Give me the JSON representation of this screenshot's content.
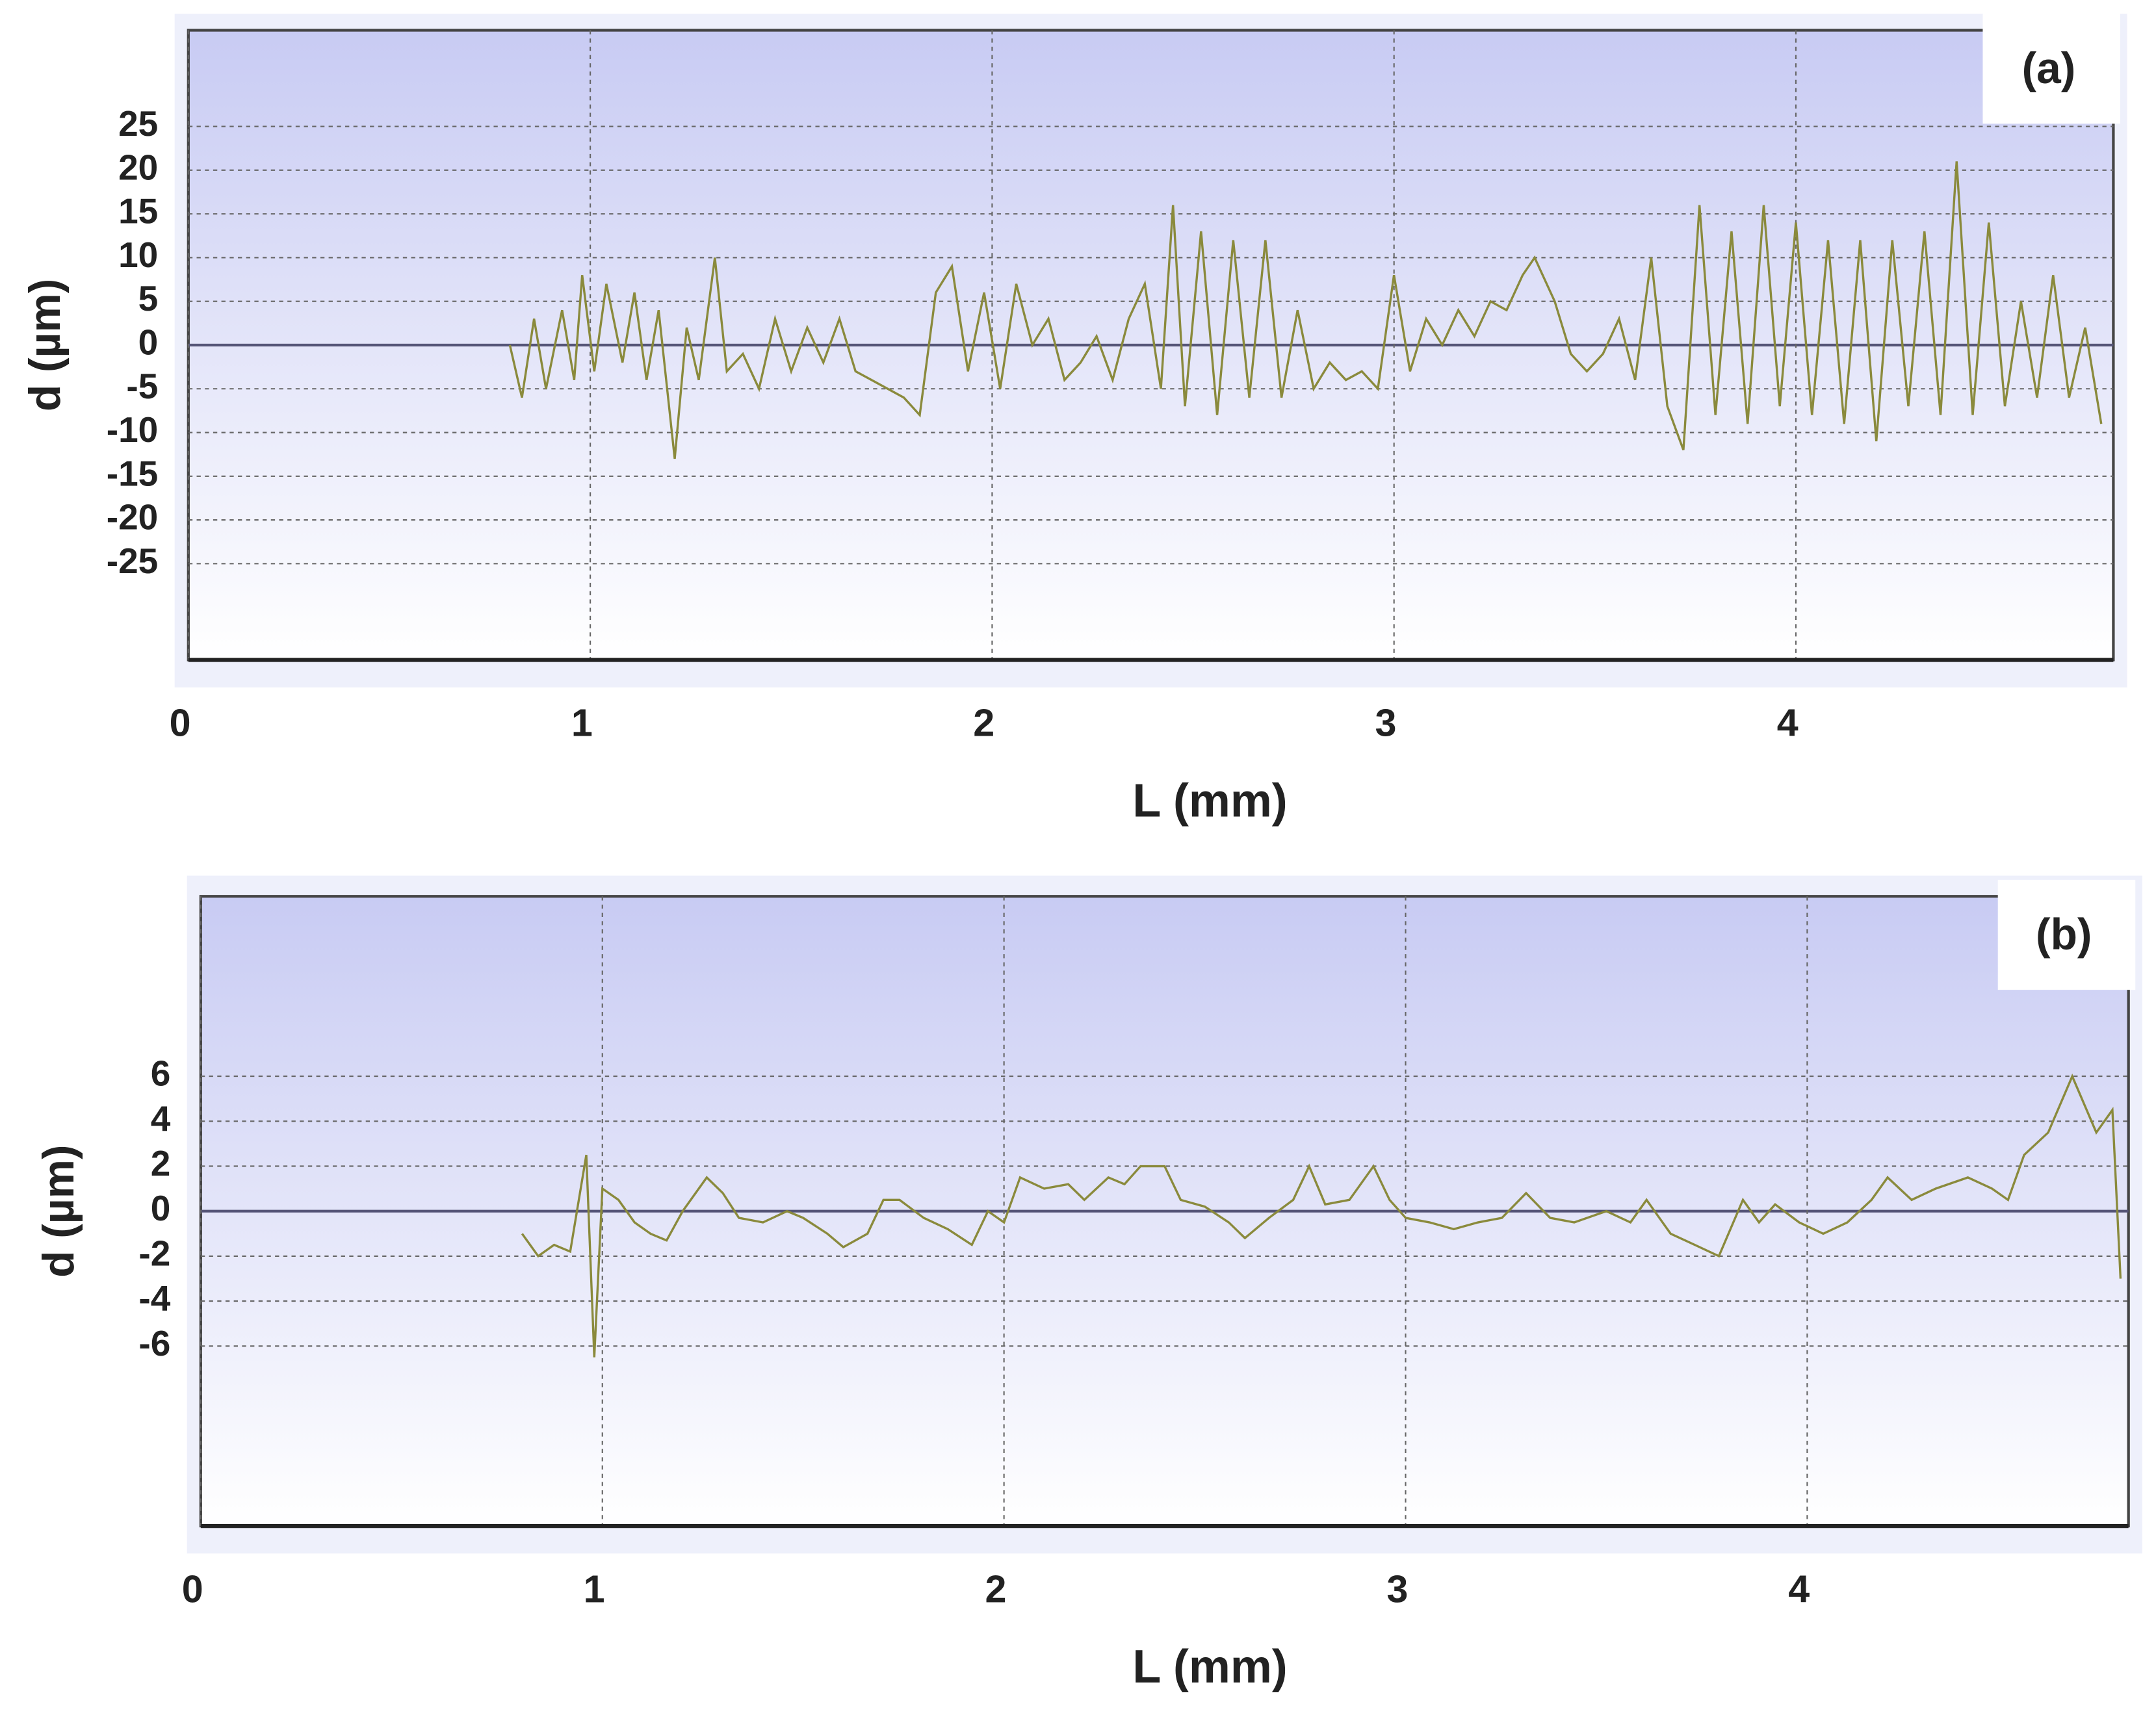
{
  "chart_data": [
    {
      "type": "line",
      "title": "(a)",
      "x_label": "L (mm)",
      "y_label": "d (µm)",
      "color": "#8a8a3c",
      "grid": true,
      "xlim": [
        0,
        4.79
      ],
      "xticks": [
        0,
        1,
        2,
        3,
        4
      ],
      "ylim": [
        -36,
        36
      ],
      "yticks": [
        -25,
        -20,
        -15,
        -10,
        -5,
        0,
        5,
        10,
        15,
        20,
        25
      ],
      "x": [
        0.8,
        0.83,
        0.86,
        0.89,
        0.93,
        0.96,
        0.98,
        1.01,
        1.04,
        1.08,
        1.11,
        1.14,
        1.17,
        1.21,
        1.24,
        1.27,
        1.31,
        1.34,
        1.38,
        1.42,
        1.46,
        1.5,
        1.54,
        1.58,
        1.62,
        1.66,
        1.7,
        1.74,
        1.78,
        1.82,
        1.86,
        1.9,
        1.94,
        1.98,
        2.02,
        2.06,
        2.1,
        2.14,
        2.18,
        2.22,
        2.26,
        2.3,
        2.34,
        2.38,
        2.42,
        2.45,
        2.48,
        2.52,
        2.56,
        2.6,
        2.64,
        2.68,
        2.72,
        2.76,
        2.8,
        2.84,
        2.88,
        2.92,
        2.96,
        3.0,
        3.04,
        3.08,
        3.12,
        3.16,
        3.2,
        3.24,
        3.28,
        3.32,
        3.35,
        3.4,
        3.44,
        3.48,
        3.52,
        3.56,
        3.6,
        3.64,
        3.68,
        3.72,
        3.76,
        3.8,
        3.84,
        3.88,
        3.92,
        3.96,
        4.0,
        4.04,
        4.08,
        4.12,
        4.16,
        4.2,
        4.24,
        4.28,
        4.32,
        4.36,
        4.4,
        4.44,
        4.48,
        4.52,
        4.56,
        4.6,
        4.64,
        4.68,
        4.72,
        4.76
      ],
      "values": [
        0,
        -6,
        3,
        -5,
        4,
        -4,
        8,
        -3,
        7,
        -2,
        6,
        -4,
        4,
        -13,
        2,
        -4,
        10,
        -3,
        -1,
        -5,
        3,
        -3,
        2,
        -2,
        3,
        -3,
        -4,
        -5,
        -6,
        -8,
        6,
        9,
        -3,
        6,
        -5,
        7,
        0,
        3,
        -4,
        -2,
        1,
        -4,
        3,
        7,
        -5,
        16,
        -7,
        13,
        -8,
        12,
        -6,
        12,
        -6,
        4,
        -5,
        -2,
        -4,
        -3,
        -5,
        8,
        -3,
        3,
        0,
        4,
        1,
        5,
        4,
        8,
        10,
        5,
        -1,
        -3,
        -1,
        3,
        -4,
        10,
        -7,
        -12,
        16,
        -8,
        13,
        -9,
        16,
        -7,
        14,
        -8,
        12,
        -9,
        12,
        -11,
        12,
        -7,
        13,
        -8,
        21,
        -8,
        14,
        -7,
        5,
        -6,
        8,
        -6,
        2,
        -9
      ]
    },
    {
      "type": "line",
      "title": "(b)",
      "x_label": "L (mm)",
      "y_label": "d (µm)",
      "color": "#8a8a3c",
      "grid": true,
      "xlim": [
        0,
        4.8
      ],
      "xticks": [
        0,
        1,
        2,
        3,
        4
      ],
      "ylim": [
        -14,
        14
      ],
      "yticks": [
        -6,
        -4,
        -2,
        0,
        2,
        4,
        6
      ],
      "x": [
        0.8,
        0.84,
        0.88,
        0.92,
        0.96,
        0.98,
        1.0,
        1.04,
        1.08,
        1.12,
        1.16,
        1.2,
        1.26,
        1.3,
        1.34,
        1.4,
        1.46,
        1.5,
        1.56,
        1.6,
        1.66,
        1.7,
        1.74,
        1.8,
        1.86,
        1.92,
        1.96,
        2.0,
        2.04,
        2.1,
        2.16,
        2.2,
        2.26,
        2.3,
        2.34,
        2.4,
        2.44,
        2.5,
        2.56,
        2.6,
        2.66,
        2.72,
        2.76,
        2.8,
        2.86,
        2.92,
        2.96,
        3.0,
        3.06,
        3.12,
        3.18,
        3.24,
        3.3,
        3.36,
        3.42,
        3.5,
        3.56,
        3.6,
        3.66,
        3.72,
        3.78,
        3.84,
        3.88,
        3.92,
        3.98,
        4.04,
        4.1,
        4.16,
        4.2,
        4.26,
        4.32,
        4.4,
        4.46,
        4.5,
        4.54,
        4.6,
        4.66,
        4.72,
        4.76,
        4.78
      ],
      "values": [
        -1,
        -2,
        -1.5,
        -1.8,
        2.5,
        -6.5,
        1,
        0.5,
        -0.5,
        -1,
        -1.3,
        0,
        1.5,
        0.8,
        -0.3,
        -0.5,
        0,
        -0.3,
        -1,
        -1.6,
        -1,
        0.5,
        0.5,
        -0.3,
        -0.8,
        -1.5,
        0,
        -0.5,
        1.5,
        1,
        1.2,
        0.5,
        1.5,
        1.2,
        2,
        2,
        0.5,
        0.2,
        -0.5,
        -1.2,
        -0.3,
        0.5,
        2,
        0.3,
        0.5,
        2,
        0.5,
        -0.3,
        -0.5,
        -0.8,
        -0.5,
        -0.3,
        0.8,
        -0.3,
        -0.5,
        0,
        -0.5,
        0.5,
        -1,
        -1.5,
        -2,
        0.5,
        -0.5,
        0.3,
        -0.5,
        -1,
        -0.5,
        0.5,
        1.5,
        0.5,
        1,
        1.5,
        1,
        0.5,
        2.5,
        3.5,
        6,
        3.5,
        4.5,
        -3
      ]
    }
  ]
}
